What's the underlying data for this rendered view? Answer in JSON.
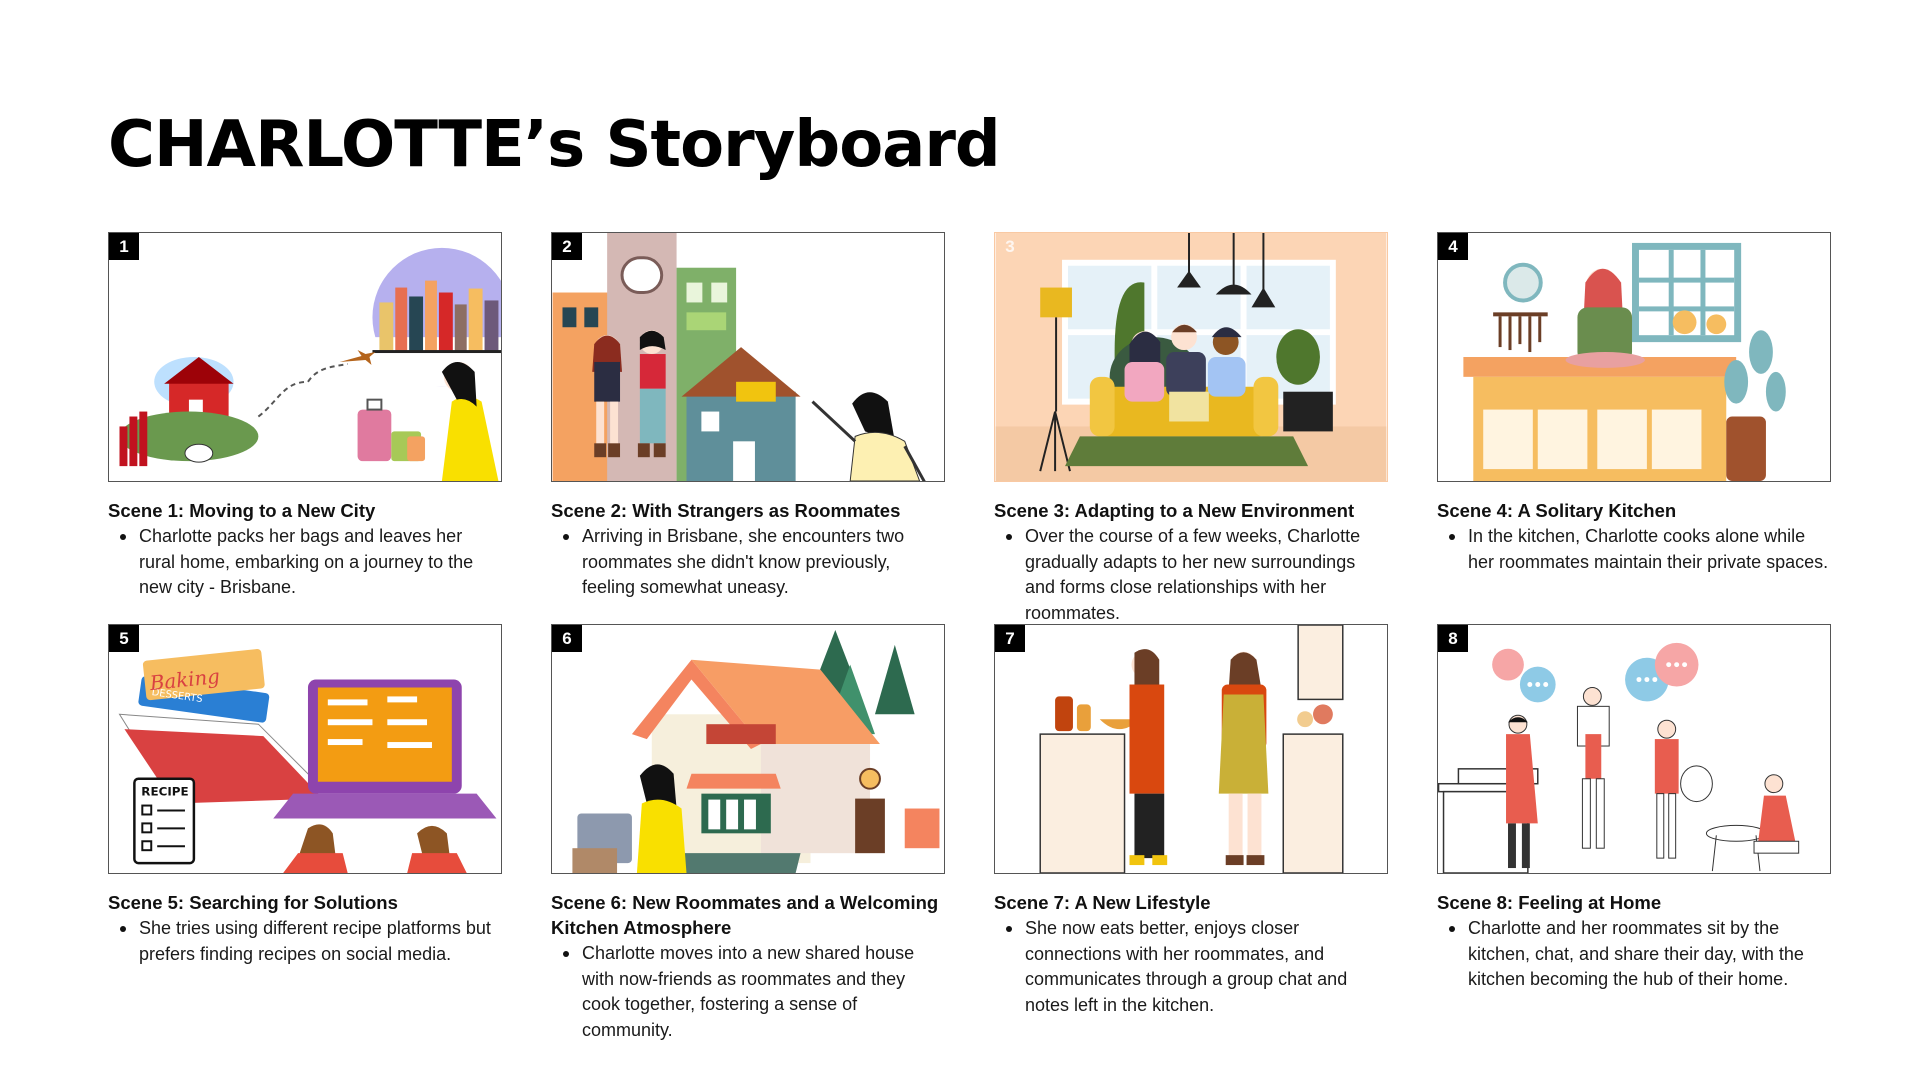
{
  "page": {
    "title": "CHARLOTTE’s Storyboard"
  },
  "scenes": [
    {
      "number": "1",
      "heading": "Scene 1: Moving to a New City",
      "text": "Charlotte packs her bags and leaves her rural home, embarking on a journey to the new city - Brisbane."
    },
    {
      "number": "2",
      "heading": "Scene 2: With Strangers as Roommates",
      "text": "Arriving in Brisbane, she encounters two roommates she didn't know previously, feeling somewhat uneasy."
    },
    {
      "number": "3",
      "heading": "Scene 3: Adapting to a New Environment",
      "text": "Over the course of a few weeks, Charlotte gradually adapts to her new surroundings and forms close relationships with her roommates."
    },
    {
      "number": "4",
      "heading": "Scene 4: A Solitary Kitchen",
      "text": "In the kitchen, Charlotte cooks alone while her roommates maintain their private spaces."
    },
    {
      "number": "5",
      "heading": "Scene 5: Searching for Solutions",
      "text": "She tries using different recipe platforms but prefers finding recipes on social media.",
      "book_label_1": "Baking",
      "book_label_2": "DESSERTS",
      "recipe_label": "RECIPE"
    },
    {
      "number": "6",
      "heading": "Scene 6: New Roommates and a Welcoming Kitchen Atmosphere",
      "text": "Charlotte moves into a new shared house with now-friends as roommates and they cook together, fostering a sense of community."
    },
    {
      "number": "7",
      "heading": "Scene 7: A New Lifestyle",
      "text": "She now eats better, enjoys closer connections with her roommates, and communicates through a group chat and notes left in the kitchen."
    },
    {
      "number": "8",
      "heading": "Scene 8: Feeling at Home",
      "text": "Charlotte and her roommates sit by the kitchen, chat, and share their day, with the kitchen becoming the hub of their home."
    }
  ]
}
